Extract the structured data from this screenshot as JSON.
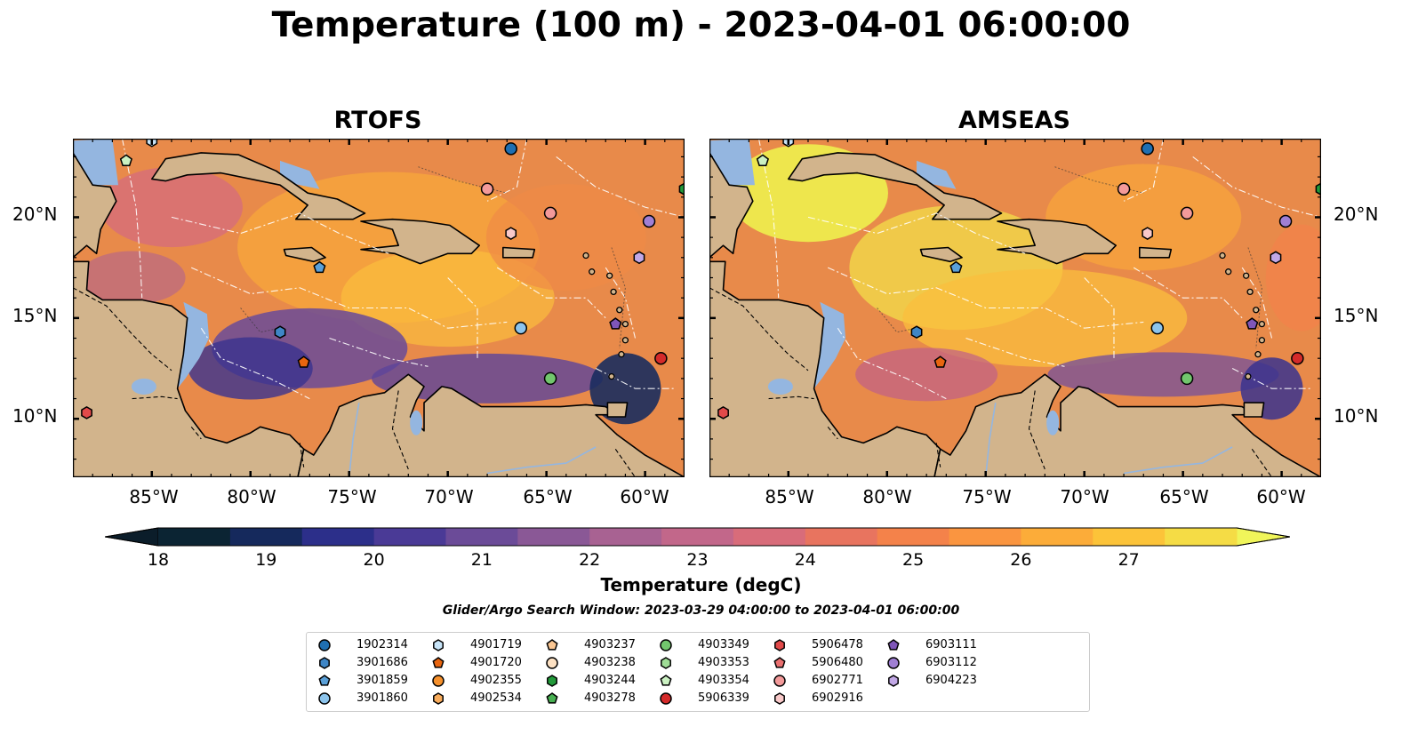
{
  "title": "Temperature (100 m) - 2023-04-01 06:00:00",
  "panels": [
    {
      "title": "RTOFS",
      "kind": "rtofs"
    },
    {
      "title": "AMSEAS",
      "kind": "amseas"
    }
  ],
  "lat_labels": [
    "20°N",
    "15°N",
    "10°N"
  ],
  "lon_labels": [
    "85°W",
    "80°W",
    "75°W",
    "70°W",
    "65°W",
    "60°W"
  ],
  "colorbar": {
    "label": "Temperature (degC)",
    "ticks": [
      "18",
      "19",
      "20",
      "21",
      "22",
      "23",
      "24",
      "25",
      "26",
      "27"
    ],
    "range": [
      18,
      27
    ],
    "colors": [
      "#0b2433",
      "#15295c",
      "#2c2f8a",
      "#4a3a96",
      "#6b4b98",
      "#8a5896",
      "#a86292",
      "#c2678a",
      "#d86c7a",
      "#e8745f",
      "#f4824a",
      "#fa9540",
      "#fcac39",
      "#fcc339",
      "#f5dc45"
    ],
    "extend_low_color": "#0b1d2a",
    "extend_high_color": "#f0f55a"
  },
  "search_window": "Glider/Argo Search Window: 2023-03-29 04:00:00 to 2023-04-01 06:00:00",
  "legend": [
    {
      "id": "1902314",
      "shape": "circle",
      "color": "#1f6fb2"
    },
    {
      "id": "3901686",
      "shape": "hexagon",
      "color": "#3f86c6"
    },
    {
      "id": "3901859",
      "shape": "pentagon",
      "color": "#5aa0d8"
    },
    {
      "id": "3901860",
      "shape": "circle",
      "color": "#8cc4ec"
    },
    {
      "id": "4901719",
      "shape": "hexagon",
      "color": "#c7e4f8"
    },
    {
      "id": "4901720",
      "shape": "pentagon",
      "color": "#e8650f"
    },
    {
      "id": "4902355",
      "shape": "circle",
      "color": "#f5902c"
    },
    {
      "id": "4902534",
      "shape": "hexagon",
      "color": "#f9ac5c"
    },
    {
      "id": "4903237",
      "shape": "pentagon",
      "color": "#fbc793"
    },
    {
      "id": "4903238",
      "shape": "circle",
      "color": "#fde1c3"
    },
    {
      "id": "4903244",
      "shape": "hexagon",
      "color": "#229a3a"
    },
    {
      "id": "4903278",
      "shape": "pentagon",
      "color": "#48b052"
    },
    {
      "id": "4903349",
      "shape": "circle",
      "color": "#72c66d"
    },
    {
      "id": "4903353",
      "shape": "hexagon",
      "color": "#9fdc96"
    },
    {
      "id": "4903354",
      "shape": "pentagon",
      "color": "#cbf1c2"
    },
    {
      "id": "5906339",
      "shape": "circle",
      "color": "#d42a2a"
    },
    {
      "id": "5906478",
      "shape": "hexagon",
      "color": "#e24a4a"
    },
    {
      "id": "5906480",
      "shape": "pentagon",
      "color": "#ea7070"
    },
    {
      "id": "6902771",
      "shape": "circle",
      "color": "#f39a9a"
    },
    {
      "id": "6902916",
      "shape": "hexagon",
      "color": "#f9c9c9"
    },
    {
      "id": "6903111",
      "shape": "pentagon",
      "color": "#7f56b8"
    },
    {
      "id": "6903112",
      "shape": "circle",
      "color": "#a07fd4"
    },
    {
      "id": "6904223",
      "shape": "hexagon",
      "color": "#c2a8e6"
    }
  ],
  "markers": [
    {
      "id": "1902314",
      "lon": -66.8,
      "lat": 23.4
    },
    {
      "id": "3901686",
      "lon": -78.5,
      "lat": 14.3
    },
    {
      "id": "3901859",
      "lon": -76.5,
      "lat": 17.5
    },
    {
      "id": "3901860",
      "lon": -66.3,
      "lat": 14.5
    },
    {
      "id": "4901719",
      "lon": -85.0,
      "lat": 23.8
    },
    {
      "id": "4901720",
      "lon": -77.3,
      "lat": 12.8
    },
    {
      "id": "4903244",
      "lon": -58.0,
      "lat": 21.4
    },
    {
      "id": "4903349",
      "lon": -64.8,
      "lat": 12.0
    },
    {
      "id": "4903354",
      "lon": -86.3,
      "lat": 22.8
    },
    {
      "id": "5906339",
      "lon": -59.2,
      "lat": 13.0
    },
    {
      "id": "5906478",
      "lon": -88.3,
      "lat": 10.3
    },
    {
      "id": "6902771",
      "lon": -68.0,
      "lat": 21.4
    },
    {
      "id": "6902771",
      "lon": -64.8,
      "lat": 20.2
    },
    {
      "id": "6902916",
      "lon": -66.8,
      "lat": 19.2
    },
    {
      "id": "6903111",
      "lon": -61.5,
      "lat": 14.7
    },
    {
      "id": "6903112",
      "lon": -59.8,
      "lat": 19.8
    },
    {
      "id": "6904223",
      "lon": -60.3,
      "lat": 18.0
    }
  ]
}
